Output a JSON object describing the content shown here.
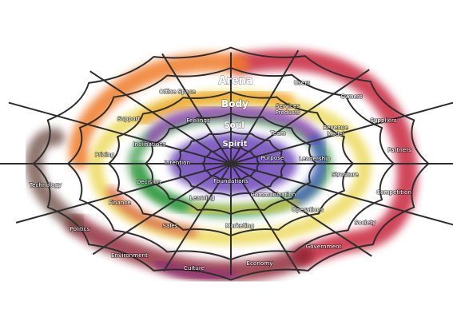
{
  "layers": {
    "arena": "Arena",
    "body": "Body",
    "soul": "Soul",
    "spirit": "Spirit"
  },
  "labels": [
    {
      "id": "users",
      "text": "Users"
    },
    {
      "id": "owners",
      "text": "Owners"
    },
    {
      "id": "suppliers",
      "text": "Suppliers"
    },
    {
      "id": "partners",
      "text": "Partners"
    },
    {
      "id": "competition",
      "text": "Competition"
    },
    {
      "id": "society",
      "text": "Society"
    },
    {
      "id": "government",
      "text": "Government"
    },
    {
      "id": "economy",
      "text": "Economy"
    },
    {
      "id": "culture",
      "text": "Culture"
    },
    {
      "id": "environment",
      "text": "Environment"
    },
    {
      "id": "politics",
      "text": "Politics"
    },
    {
      "id": "technology",
      "text": "Technology"
    },
    {
      "id": "office-space",
      "text": "Office Space"
    },
    {
      "id": "support",
      "text": "Support"
    },
    {
      "id": "pricing",
      "text": "Pricing"
    },
    {
      "id": "finance",
      "text": "Finance"
    },
    {
      "id": "sales",
      "text": "Sales"
    },
    {
      "id": "marketing",
      "text": "Marketing"
    },
    {
      "id": "operations",
      "text": "Operations"
    },
    {
      "id": "structure",
      "text": "Structure"
    },
    {
      "id": "revenue-model",
      "text": "Revenue Model"
    },
    {
      "id": "services-products",
      "text": "Services Products"
    },
    {
      "id": "team",
      "text": "Team"
    },
    {
      "id": "leadership",
      "text": "Leadership"
    },
    {
      "id": "communication",
      "text": "Communication"
    },
    {
      "id": "learning",
      "text": "Learning"
    },
    {
      "id": "decision",
      "text": "Decision"
    },
    {
      "id": "intention",
      "text": "Intention"
    },
    {
      "id": "inclinations",
      "text": "Inclinations"
    },
    {
      "id": "feelings",
      "text": "Feelings"
    },
    {
      "id": "purpose",
      "text": "Purpose"
    },
    {
      "id": "foundations",
      "text": "Foundations"
    }
  ]
}
